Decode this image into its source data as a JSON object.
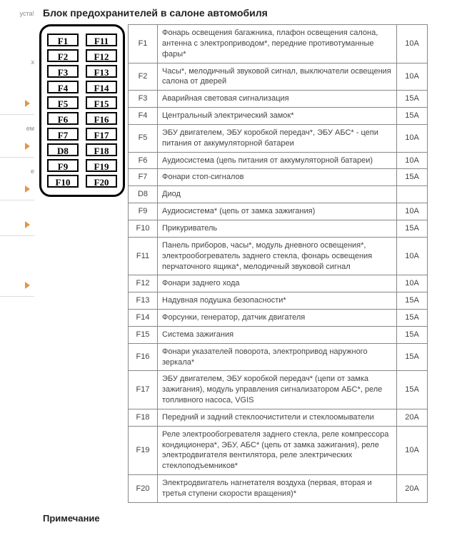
{
  "title": "Блок предохранителей в салоне автомобиля",
  "footnote": "Примечание",
  "leftMargin": {
    "t0": "уста!",
    "t1": "х",
    "t2": "ем",
    "t3": "е"
  },
  "diagram": {
    "left": [
      "F1",
      "F2",
      "F3",
      "F4",
      "F5",
      "F6",
      "F7",
      "D8",
      "F9",
      "F10"
    ],
    "right": [
      "F11",
      "F12",
      "F13",
      "F14",
      "F15",
      "F16",
      "F17",
      "F18",
      "F19",
      "F20"
    ]
  },
  "rows": [
    {
      "id": "F1",
      "desc": "Фонарь освещения багажника, плафон освещения салона, антенна с электроприводом*, передние противотуманные фары*",
      "amp": "10A"
    },
    {
      "id": "F2",
      "desc": "Часы*, мелодичный звуковой сигнал, выключатели освещения салона от дверей",
      "amp": "10A"
    },
    {
      "id": "F3",
      "desc": "Аварийная световая сигнализация",
      "amp": "15A"
    },
    {
      "id": "F4",
      "desc": "Центральный электрический замок*",
      "amp": "15A"
    },
    {
      "id": "F5",
      "desc": "ЭБУ двигателем, ЭБУ коробкой передач*, ЭБУ АБС* - цепи питания от аккумуляторной батареи",
      "amp": "10A"
    },
    {
      "id": "F6",
      "desc": "Аудиосистема (цепь питания от аккумуляторной батареи)",
      "amp": "10A"
    },
    {
      "id": "F7",
      "desc": "Фонари стоп-сигналов",
      "amp": "15A"
    },
    {
      "id": "D8",
      "desc": "Диод",
      "amp": ""
    },
    {
      "id": "F9",
      "desc": "Аудиосистема* (цепь от замка зажигания)",
      "amp": "10A"
    },
    {
      "id": "F10",
      "desc": "Прикуриватель",
      "amp": "15A"
    },
    {
      "id": "F11",
      "desc": "Панель приборов, часы*, модуль дневного освещения*, электрообогреватель заднего стекла, фонарь освещения перчаточного ящика*, мелодичный звуковой сигнал",
      "amp": "10A"
    },
    {
      "id": "F12",
      "desc": "Фонари заднего хода",
      "amp": "10A"
    },
    {
      "id": "F13",
      "desc": "Надувная подушка безопасности*",
      "amp": "15A"
    },
    {
      "id": "F14",
      "desc": "Форсунки, генератор, датчик двигателя",
      "amp": "15A"
    },
    {
      "id": "F15",
      "desc": "Система зажигания",
      "amp": "15A"
    },
    {
      "id": "F16",
      "desc": "Фонари указателей поворота, электропривод наружного зеркала*",
      "amp": "15A"
    },
    {
      "id": "F17",
      "desc": "ЭБУ двигателем, ЭБУ коробкой передач* (цепи от замка зажигания), модуль управления сигнализатором АБС*, реле топливного насоса, VGIS",
      "amp": "15A"
    },
    {
      "id": "F18",
      "desc": "Передний и задний стеклоочистители и стеклоомыватели",
      "amp": "20A"
    },
    {
      "id": "F19",
      "desc": "Реле электрообогревателя заднего стекла, реле компрессора кондиционера*, ЭБУ, АБС* (цепь от замка зажигания), реле электродвигателя вентилятора, реле электрических стеклоподъемников*",
      "amp": "10A"
    },
    {
      "id": "F20",
      "desc": "Электродвигатель нагнетателя воздуха (первая, вторая и третья ступени скорости вращения)*",
      "amp": "20A"
    }
  ],
  "style": {
    "border_color": "#888",
    "slot_border": "#000",
    "accent": "#e0974a"
  }
}
